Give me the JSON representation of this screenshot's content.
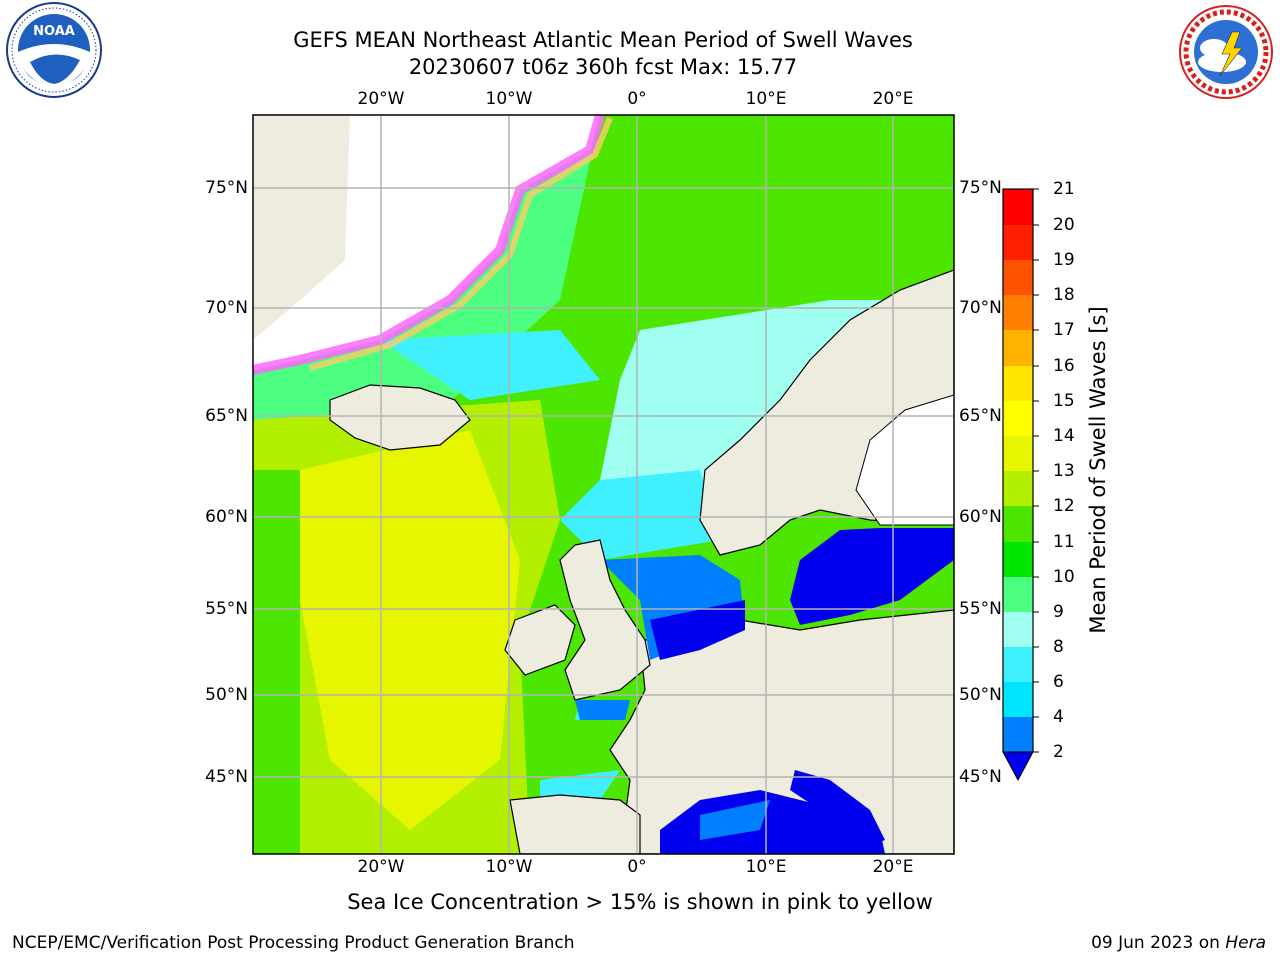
{
  "header": {
    "title_line1": "GEFS MEAN Northeast Atlantic Mean Period of Swell Waves",
    "title_line2": "20230607 t06z 360h fcst   Max: 15.77"
  },
  "logos": {
    "left": "NOAA",
    "left_ring_text": "NATIONAL OCEANIC AND ATMOSPHERIC ADMINISTRATION · U.S. DEPARTMENT OF COMMERCE",
    "right_ring_text": "NATIONAL WEATHER SERVICE"
  },
  "map": {
    "lon_labels_top": [
      "20°W",
      "10°W",
      "0°",
      "10°E",
      "20°E"
    ],
    "lon_labels_bottom": [
      "20°W",
      "10°W",
      "0°",
      "10°E",
      "20°E"
    ],
    "lat_labels": [
      "75°N",
      "70°N",
      "65°N",
      "60°N",
      "55°N",
      "50°N",
      "45°N"
    ],
    "colors": {
      "land": "#eeecdf",
      "ice": "#ffffff",
      "grid": "#b3b3b3",
      "coast": "#000000"
    }
  },
  "colorbar": {
    "title": "Mean Period of Swell Waves [s]",
    "tick_labels": [
      "2",
      "4",
      "6",
      "8",
      "9",
      "10",
      "11",
      "12",
      "13",
      "14",
      "15",
      "16",
      "17",
      "18",
      "19",
      "20",
      "21"
    ],
    "colors": [
      "#0000ee",
      "#0080ff",
      "#00e5ff",
      "#40f0ff",
      "#a0fff0",
      "#4dff80",
      "#00e600",
      "#4de600",
      "#b3f000",
      "#e6f500",
      "#ffff00",
      "#ffe600",
      "#ffb300",
      "#ff8000",
      "#ff5200",
      "#ff2000",
      "#ff0000"
    ]
  },
  "footer": {
    "caption": "Sea Ice Concentration > 15% is shown in pink to yellow",
    "left": "NCEP/EMC/Verification Post Processing Product Generation Branch",
    "date": "09 Jun 2023 on",
    "host": "Hera"
  }
}
